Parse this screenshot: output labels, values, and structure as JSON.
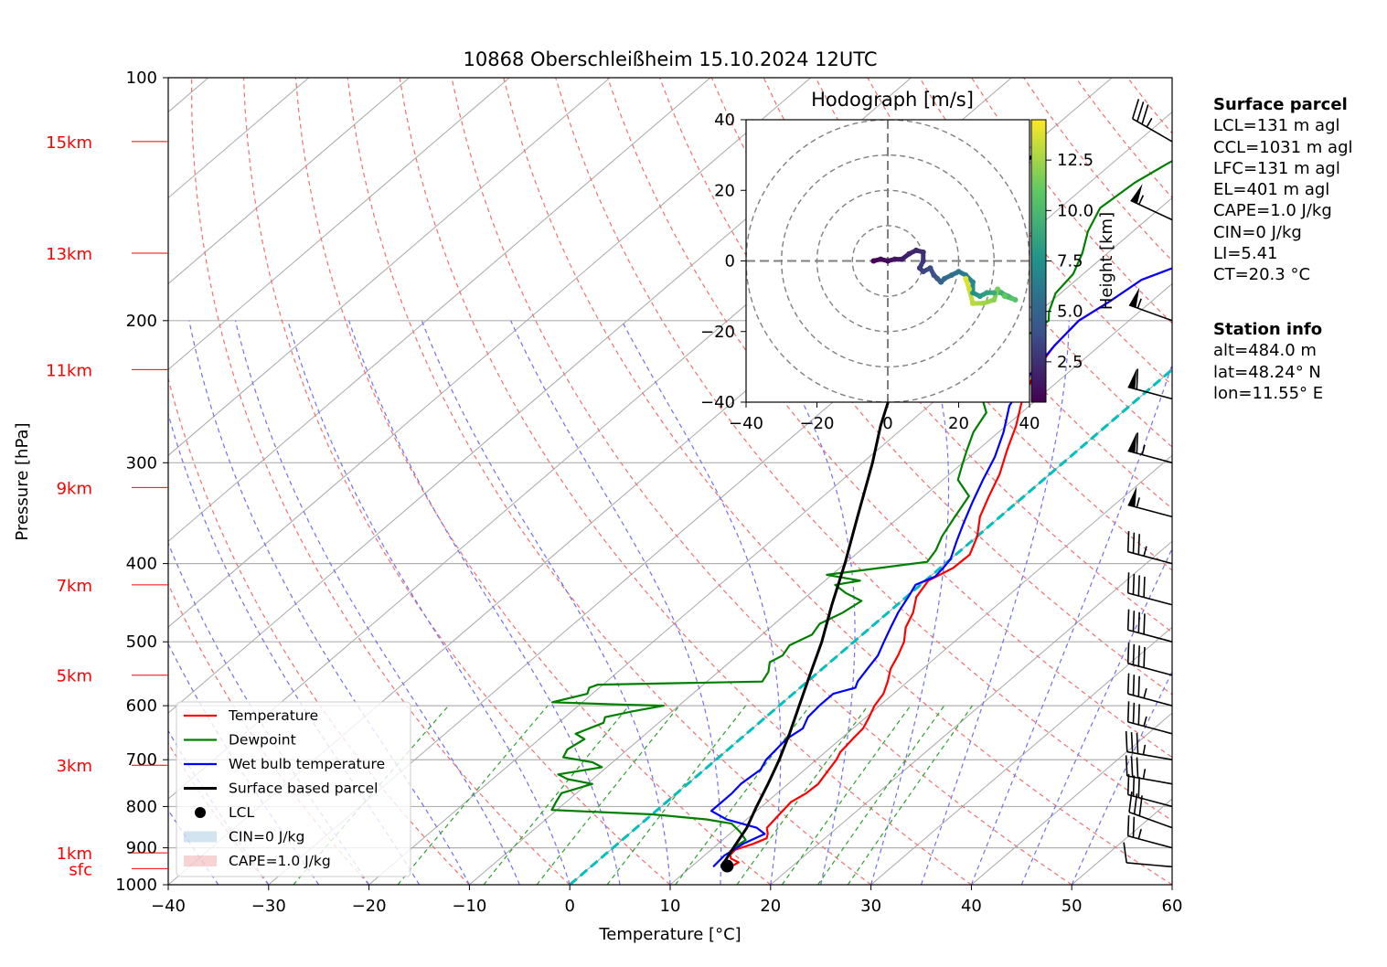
{
  "chart_data": [
    {
      "type": "line",
      "title": "10868 Oberschleißheim 15.10.2024 12UTC",
      "xlabel": "Temperature [°C]",
      "ylabel": "Pressure [hPa]",
      "xlim": [
        -40,
        60
      ],
      "ylim": [
        1000,
        100
      ],
      "y_scale": "log",
      "x_ticks": [
        "−40",
        "−30",
        "−20",
        "−10",
        "0",
        "10",
        "20",
        "30",
        "40",
        "50",
        "60"
      ],
      "y_ticks": [
        "100",
        "200",
        "300",
        "400",
        "500",
        "600",
        "700",
        "800",
        "900",
        "1000"
      ],
      "height_labels": [
        {
          "label": "sfc",
          "pressure": 955
        },
        {
          "label": "1km",
          "pressure": 913
        },
        {
          "label": "3km",
          "pressure": 711
        },
        {
          "label": "5km",
          "pressure": 550
        },
        {
          "label": "7km",
          "pressure": 425
        },
        {
          "label": "9km",
          "pressure": 322
        },
        {
          "label": "11km",
          "pressure": 230
        },
        {
          "label": "13km",
          "pressure": 165
        },
        {
          "label": "15km",
          "pressure": 120
        }
      ],
      "legend_position": "lower-left",
      "legend": [
        "Temperature",
        "Dewpoint",
        "Wet bulb temperature",
        "Surface based parcel",
        "LCL",
        "CIN=0 J/kg",
        "CAPE=1.0 J/kg"
      ],
      "colors": {
        "temperature": "#ff0000",
        "dewpoint": "#008000",
        "wetbulb": "#0000ff",
        "parcel": "#000000",
        "isotherm0": "#00bfbf",
        "cin": "#1f77b4",
        "cape": "#d62728"
      },
      "series": [
        {
          "name": "Temperature",
          "points": [
            [
              13.8,
              955
            ],
            [
              14.2,
              938
            ],
            [
              13.0,
              928
            ],
            [
              12.5,
              918
            ],
            [
              12.4,
              905
            ],
            [
              13.5,
              890
            ],
            [
              14.2,
              876
            ],
            [
              13.8,
              865
            ],
            [
              13.0,
              850
            ],
            [
              12.8,
              830
            ],
            [
              12.4,
              790
            ],
            [
              12.9,
              770
            ],
            [
              13.0,
              750
            ],
            [
              12.4,
              720
            ],
            [
              12.0,
              700
            ],
            [
              11.5,
              685
            ],
            [
              11.2,
              660
            ],
            [
              11.0,
              640
            ],
            [
              10.3,
              620
            ],
            [
              9.5,
              600
            ],
            [
              9.0,
              580
            ],
            [
              8.0,
              560
            ],
            [
              6.8,
              540
            ],
            [
              6.0,
              520
            ],
            [
              5.0,
              500
            ],
            [
              3.5,
              480
            ],
            [
              2.5,
              460
            ],
            [
              1.0,
              440
            ],
            [
              0.3,
              420
            ],
            [
              1.3,
              405
            ],
            [
              1.4,
              390
            ],
            [
              0.0,
              370
            ],
            [
              -2.0,
              350
            ],
            [
              -3.5,
              330
            ],
            [
              -5.0,
              310
            ],
            [
              -7.0,
              290
            ],
            [
              -9.0,
              270
            ],
            [
              -11.5,
              250
            ],
            [
              -13.5,
              230
            ],
            [
              -14.5,
              215
            ],
            [
              -15.0,
              200
            ],
            [
              -14.2,
              190
            ],
            [
              -13.5,
              178
            ],
            [
              -10.5,
              168
            ],
            [
              -11.0,
              160
            ],
            [
              -10.0,
              155
            ],
            [
              -8.0,
              148
            ],
            [
              -4.5,
              140
            ],
            [
              -3.5,
              132
            ],
            [
              -2.5,
              125
            ],
            [
              -1.5,
              120
            ],
            [
              0.0,
              117
            ]
          ]
        },
        {
          "name": "Dewpoint",
          "points": [
            [
              12.5,
              920
            ],
            [
              12.0,
              900
            ],
            [
              12.3,
              880
            ],
            [
              10.8,
              860
            ],
            [
              9.0,
              840
            ],
            [
              6.0,
              830
            ],
            [
              1.0,
              820
            ],
            [
              0.0,
              818
            ],
            [
              -10.5,
              808
            ],
            [
              -11.0,
              790
            ],
            [
              -11.5,
              770
            ],
            [
              -9.5,
              750
            ],
            [
              -12.5,
              740
            ],
            [
              -14.0,
              730
            ],
            [
              -10.5,
              715
            ],
            [
              -12.0,
              705
            ],
            [
              -15.5,
              695
            ],
            [
              -16.0,
              680
            ],
            [
              -15.5,
              660
            ],
            [
              -17.0,
              650
            ],
            [
              -15.5,
              630
            ],
            [
              -16.0,
              620
            ],
            [
              -14.0,
              610
            ],
            [
              -11.5,
              600
            ],
            [
              -16.0,
              598
            ],
            [
              -23.0,
              594
            ],
            [
              -20.5,
              580
            ],
            [
              -21.0,
              570
            ],
            [
              -20.5,
              565
            ],
            [
              -4.5,
              560
            ],
            [
              -5.0,
              545
            ],
            [
              -6.0,
              530
            ],
            [
              -5.5,
              520
            ],
            [
              -6.0,
              505
            ],
            [
              -5.0,
              490
            ],
            [
              -5.5,
              475
            ],
            [
              -4.5,
              460
            ],
            [
              -4.0,
              445
            ],
            [
              -6.5,
              435
            ],
            [
              -8.5,
              425
            ],
            [
              -6.5,
              420
            ],
            [
              -10.5,
              413
            ],
            [
              -6.0,
              405
            ],
            [
              -2.0,
              398
            ],
            [
              -2.5,
              385
            ],
            [
              -3.5,
              370
            ],
            [
              -4.5,
              350
            ],
            [
              -5.5,
              330
            ],
            [
              -8.5,
              315
            ],
            [
              -10.0,
              300
            ],
            [
              -11.0,
              290
            ],
            [
              -12.5,
              275
            ],
            [
              -13.5,
              260
            ],
            [
              -15.5,
              250
            ],
            [
              -17.0,
              235
            ],
            [
              -18.0,
              220
            ],
            [
              -18.5,
              210
            ],
            [
              -18.0,
              200
            ],
            [
              -19.0,
              195
            ],
            [
              -20.5,
              185
            ],
            [
              -21.0,
              175
            ],
            [
              -22.5,
              165
            ],
            [
              -24.5,
              155
            ],
            [
              -26.0,
              145
            ],
            [
              -25.5,
              135
            ],
            [
              -24.5,
              128
            ],
            [
              -23.0,
              120
            ]
          ]
        },
        {
          "name": "Wet bulb temperature",
          "points": [
            [
              12.2,
              950
            ],
            [
              12.0,
              920
            ],
            [
              12.5,
              890
            ],
            [
              13.5,
              865
            ],
            [
              12.0,
              850
            ],
            [
              10.0,
              840
            ],
            [
              8.0,
              830
            ],
            [
              5.5,
              810
            ],
            [
              5.5,
              790
            ],
            [
              5.5,
              770
            ],
            [
              5.3,
              750
            ],
            [
              5.6,
              720
            ],
            [
              5.0,
              700
            ],
            [
              4.8,
              680
            ],
            [
              4.6,
              660
            ],
            [
              5.0,
              640
            ],
            [
              4.2,
              620
            ],
            [
              4.0,
              600
            ],
            [
              4.0,
              580
            ],
            [
              5.5,
              570
            ],
            [
              5.0,
              560
            ],
            [
              4.5,
              540
            ],
            [
              4.0,
              520
            ],
            [
              3.0,
              500
            ],
            [
              2.0,
              480
            ],
            [
              1.0,
              460
            ],
            [
              0.2,
              440
            ],
            [
              -0.5,
              425
            ],
            [
              0.5,
              415
            ],
            [
              0.3,
              405
            ],
            [
              0.0,
              395
            ],
            [
              -1.5,
              375
            ],
            [
              -3.0,
              355
            ],
            [
              -4.5,
              335
            ],
            [
              -6.0,
              315
            ],
            [
              -7.5,
              295
            ],
            [
              -9.5,
              275
            ],
            [
              -12.0,
              255
            ],
            [
              -13.5,
              235
            ],
            [
              -14.5,
              215
            ],
            [
              -15.0,
              200
            ],
            [
              -14.2,
              190
            ],
            [
              -13.5,
              178
            ],
            [
              -10.5,
              168
            ],
            [
              -11.0,
              160
            ],
            [
              -10.0,
              155
            ],
            [
              -8.0,
              148
            ],
            [
              -4.5,
              140
            ],
            [
              -3.5,
              132
            ],
            [
              -2.5,
              125
            ],
            [
              -1.5,
              120
            ],
            [
              0.0,
              117
            ]
          ]
        },
        {
          "name": "Surface based parcel",
          "points": [
            [
              13.0,
              950
            ],
            [
              12.0,
              900
            ],
            [
              11.0,
              850
            ],
            [
              9.5,
              800
            ],
            [
              8.0,
              750
            ],
            [
              6.3,
              700
            ],
            [
              4.3,
              650
            ],
            [
              2.0,
              600
            ],
            [
              -0.5,
              550
            ],
            [
              -3.2,
              500
            ],
            [
              -6.5,
              450
            ],
            [
              -10.0,
              400
            ],
            [
              -14.2,
              350
            ],
            [
              -19.0,
              300
            ],
            [
              -22.5,
              270
            ],
            [
              -26.0,
              240
            ],
            [
              -30.0,
              210
            ],
            [
              -32.5,
              190
            ],
            [
              -35.0,
              170
            ],
            [
              -37.0,
              150
            ],
            [
              -38.5,
              130
            ],
            [
              -39.2,
              120
            ]
          ]
        },
        {
          "name": "LCL",
          "points": [
            [
              13.5,
              948
            ]
          ]
        }
      ]
    },
    {
      "type": "scatter",
      "title": "Hodograph [m/s]",
      "xlim": [
        -40,
        40
      ],
      "ylim": [
        -40,
        40
      ],
      "x_ticks": [
        "−40",
        "−20",
        "0",
        "20",
        "40"
      ],
      "y_ticks": [
        "−40",
        "−20",
        "0",
        "20",
        "40"
      ],
      "rings": [
        10,
        20,
        30,
        40
      ],
      "colorbar_label": "Height [km]",
      "colorbar_ticks": [
        "2.5",
        "5.0",
        "7.5",
        "10.0",
        "12.5"
      ],
      "colorbar_range": [
        0.5,
        14.5
      ],
      "points": [
        [
          -4,
          0,
          0.5
        ],
        [
          -2,
          0.5,
          0.8
        ],
        [
          0,
          0,
          1.0
        ],
        [
          2,
          0.5,
          1.3
        ],
        [
          4,
          0.5,
          1.6
        ],
        [
          6,
          2,
          1.9
        ],
        [
          8,
          3,
          2.2
        ],
        [
          10,
          2.5,
          2.5
        ],
        [
          10,
          0,
          2.8
        ],
        [
          9,
          -2,
          3.1
        ],
        [
          10,
          -3,
          3.4
        ],
        [
          12,
          -2,
          3.7
        ],
        [
          13,
          -4,
          4.0
        ],
        [
          14,
          -5,
          4.4
        ],
        [
          15,
          -6,
          4.8
        ],
        [
          16,
          -5,
          5.2
        ],
        [
          18,
          -4,
          5.6
        ],
        [
          20,
          -3,
          6.0
        ],
        [
          22,
          -4,
          6.5
        ],
        [
          24,
          -6,
          7.0
        ],
        [
          24,
          -9,
          7.5
        ],
        [
          26,
          -10,
          8.0
        ],
        [
          28,
          -9,
          8.5
        ],
        [
          30,
          -9,
          9.0
        ],
        [
          32,
          -9,
          9.5
        ],
        [
          34,
          -10,
          10.0
        ],
        [
          36,
          -11,
          10.5
        ],
        [
          33,
          -10,
          11.0
        ],
        [
          31,
          -8,
          11.5
        ],
        [
          30,
          -11,
          12.0
        ],
        [
          27,
          -12,
          12.5
        ],
        [
          24,
          -12,
          13.0
        ],
        [
          23,
          -8,
          13.5
        ],
        [
          22,
          -5,
          14.0
        ]
      ]
    }
  ],
  "wind_barbs": [
    {
      "p": 950,
      "speed": 10,
      "dir": 275
    },
    {
      "p": 900,
      "speed": 25,
      "dir": 285
    },
    {
      "p": 850,
      "speed": 30,
      "dir": 290
    },
    {
      "p": 800,
      "speed": 30,
      "dir": 285
    },
    {
      "p": 750,
      "speed": 35,
      "dir": 280
    },
    {
      "p": 700,
      "speed": 35,
      "dir": 280
    },
    {
      "p": 650,
      "speed": 35,
      "dir": 285
    },
    {
      "p": 600,
      "speed": 35,
      "dir": 285
    },
    {
      "p": 550,
      "speed": 40,
      "dir": 285
    },
    {
      "p": 500,
      "speed": 40,
      "dir": 285
    },
    {
      "p": 450,
      "speed": 40,
      "dir": 285
    },
    {
      "p": 400,
      "speed": 35,
      "dir": 285
    },
    {
      "p": 350,
      "speed": 55,
      "dir": 285
    },
    {
      "p": 300,
      "speed": 65,
      "dir": 285
    },
    {
      "p": 250,
      "speed": 60,
      "dir": 285
    },
    {
      "p": 200,
      "speed": 55,
      "dir": 290
    },
    {
      "p": 150,
      "speed": 55,
      "dir": 295
    },
    {
      "p": 120,
      "speed": 35,
      "dir": 300
    }
  ],
  "surface_parcel": {
    "title": "Surface parcel",
    "lines": [
      "LCL=131 m agl",
      "CCL=1031 m agl",
      "LFC=131 m agl",
      "EL=401 m agl",
      "CAPE=1.0 J/kg",
      "CIN=0 J/kg",
      "LI=5.41",
      "CT=20.3 °C"
    ]
  },
  "station_info": {
    "title": "Station info",
    "lines": [
      "alt=484.0 m",
      "lat=48.24° N",
      "lon=11.55° E"
    ]
  }
}
